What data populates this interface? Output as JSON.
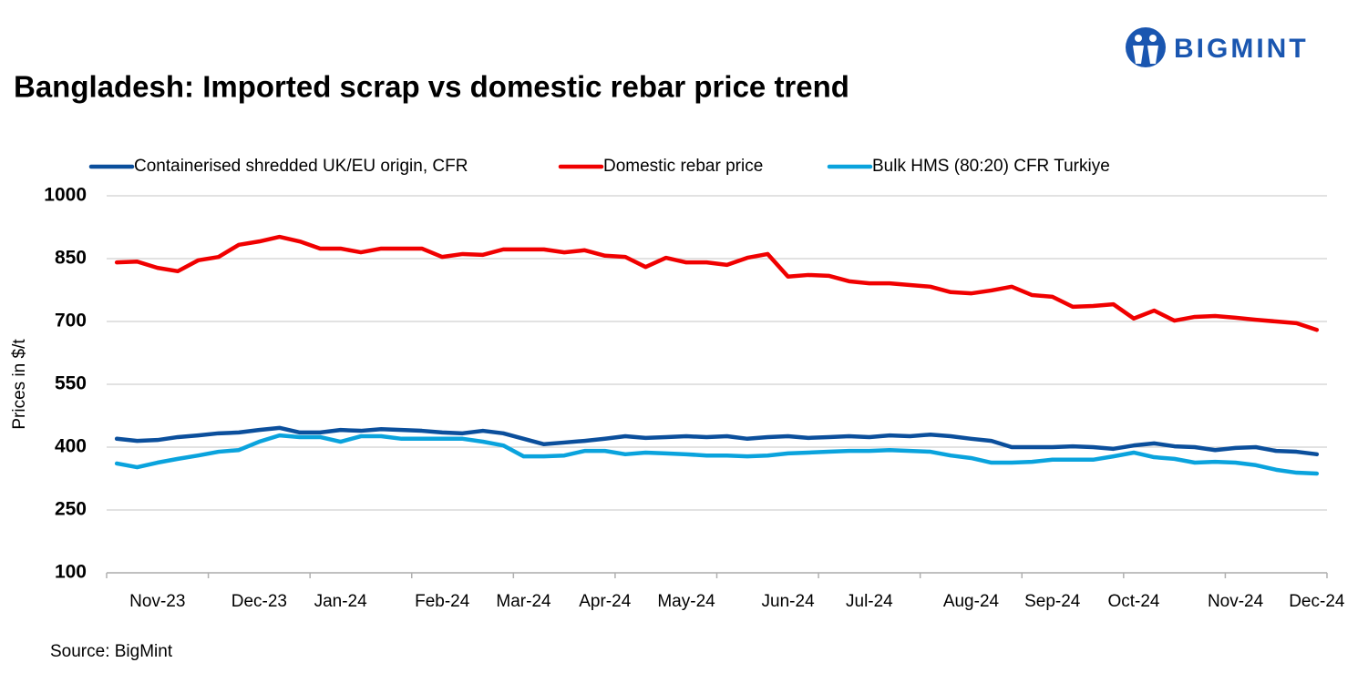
{
  "chart_data": {
    "type": "line",
    "title": "Bangladesh: Imported scrap vs domestic rebar price trend",
    "logo": "BIGMINT",
    "y_label": "Prices in $/t",
    "source": "Source: BigMint",
    "categories": [
      null,
      null,
      "Nov-23",
      null,
      null,
      null,
      null,
      "Dec-23",
      null,
      null,
      null,
      "Jan-24",
      null,
      null,
      null,
      null,
      "Feb-24",
      null,
      null,
      null,
      "Mar-24",
      null,
      null,
      null,
      "Apr-24",
      null,
      null,
      null,
      "May-24",
      null,
      null,
      null,
      null,
      "Jun-24",
      null,
      null,
      null,
      "Jul-24",
      null,
      null,
      null,
      null,
      "Aug-24",
      null,
      null,
      null,
      "Sep-24",
      null,
      null,
      null,
      "Oct-24",
      null,
      null,
      null,
      null,
      "Nov-24",
      null,
      null,
      null,
      "Dec-24"
    ],
    "series": [
      {
        "name": "Containerised shredded UK/EU origin, CFR",
        "color": "#0b4f9c",
        "values": [
          420,
          415,
          417,
          424,
          428,
          433,
          435,
          441,
          446,
          435,
          435,
          441,
          439,
          443,
          441,
          439,
          435,
          433,
          439,
          433,
          420,
          407,
          411,
          415,
          420,
          426,
          422,
          424,
          426,
          424,
          426,
          420,
          424,
          426,
          422,
          424,
          426,
          424,
          428,
          426,
          430,
          426,
          420,
          415,
          400,
          400,
          400,
          402,
          400,
          396,
          404,
          409,
          402,
          400,
          393,
          398,
          400,
          391,
          389,
          383
        ]
      },
      {
        "name": "Domestic rebar price",
        "color": "#f00000",
        "values": [
          841,
          843,
          828,
          820,
          846,
          854,
          883,
          891,
          902,
          891,
          874,
          874,
          865,
          874,
          874,
          874,
          854,
          861,
          859,
          872,
          872,
          872,
          865,
          870,
          857,
          854,
          830,
          852,
          841,
          841,
          835,
          852,
          861,
          807,
          811,
          809,
          796,
          791,
          791,
          787,
          783,
          770,
          767,
          774,
          783,
          763,
          759,
          735,
          737,
          741,
          707,
          726,
          702,
          711,
          713,
          709,
          704,
          700,
          696,
          680
        ]
      },
      {
        "name": "Bulk HMS (80:20) CFR Turkiye",
        "color": "#0aa3dd",
        "values": [
          361,
          352,
          363,
          372,
          380,
          389,
          393,
          413,
          428,
          424,
          424,
          413,
          426,
          426,
          420,
          420,
          420,
          420,
          413,
          404,
          378,
          378,
          380,
          391,
          391,
          383,
          387,
          385,
          383,
          380,
          380,
          378,
          380,
          385,
          387,
          389,
          391,
          391,
          393,
          391,
          389,
          380,
          374,
          363,
          363,
          365,
          370,
          370,
          370,
          378,
          387,
          376,
          372,
          363,
          365,
          363,
          357,
          346,
          339,
          337
        ]
      }
    ],
    "ylim": [
      100,
      1000
    ],
    "yticks": [
      100,
      250,
      400,
      550,
      700,
      850,
      1000
    ],
    "grid": true,
    "legend": "top"
  }
}
